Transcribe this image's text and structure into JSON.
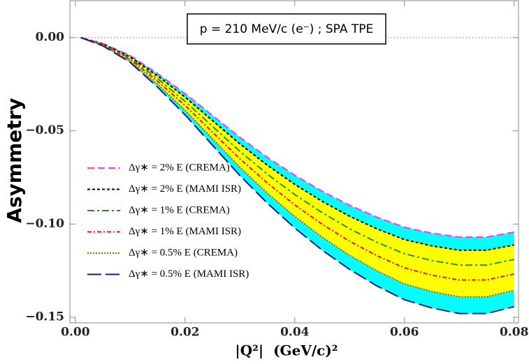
{
  "chart_data": {
    "type": "line",
    "y_label": "Asymmetry",
    "x_label": "|Q²|  (GeV/c)²",
    "annotation": "p = 210 MeV/c (e⁻) ; SPA TPE",
    "x": [
      0.001,
      0.005,
      0.01,
      0.015,
      0.02,
      0.025,
      0.03,
      0.035,
      0.04,
      0.045,
      0.05,
      0.055,
      0.06,
      0.065,
      0.07,
      0.075,
      0.08
    ],
    "series": [
      {
        "name": "Δγ∗ = 2% E (CREMA)",
        "color": "#ff33ff",
        "dash": "10,5",
        "values": [
          0,
          -0.0032,
          -0.0096,
          -0.0193,
          -0.03,
          -0.0417,
          -0.0535,
          -0.0642,
          -0.0738,
          -0.0824,
          -0.0899,
          -0.0963,
          -0.1017,
          -0.1049,
          -0.107,
          -0.107,
          -0.1043
        ]
      },
      {
        "name": "Δγ∗ = 2% E (MAMI ISR)",
        "color": "#000000",
        "dash": "4,3",
        "values": [
          0,
          -0.0034,
          -0.0103,
          -0.0205,
          -0.0319,
          -0.0445,
          -0.057,
          -0.0684,
          -0.0787,
          -0.0878,
          -0.0958,
          -0.1026,
          -0.1083,
          -0.1117,
          -0.114,
          -0.114,
          -0.1112
        ]
      },
      {
        "name": "Δγ∗ = 1% E (CREMA)",
        "color": "#1a9a1a",
        "dash": "10,4,3,4",
        "values": [
          0,
          -0.0037,
          -0.011,
          -0.022,
          -0.0342,
          -0.0476,
          -0.061,
          -0.0732,
          -0.0842,
          -0.0939,
          -0.1025,
          -0.1098,
          -0.1159,
          -0.1196,
          -0.122,
          -0.122,
          -0.119
        ]
      },
      {
        "name": "Δγ∗ = 1% E (MAMI ISR)",
        "color": "#ee1111",
        "dash": "6,3,2,3",
        "values": [
          0,
          -0.0039,
          -0.0117,
          -0.0234,
          -0.0364,
          -0.0507,
          -0.065,
          -0.078,
          -0.0897,
          -0.1001,
          -0.1092,
          -0.117,
          -0.1235,
          -0.1274,
          -0.13,
          -0.13,
          -0.1268
        ]
      },
      {
        "name": "Δγ∗ = 0.5% E (CREMA)",
        "color": "#b8560f",
        "dash": "2,2",
        "values": [
          0,
          -0.0042,
          -0.0125,
          -0.025,
          -0.0389,
          -0.0542,
          -0.0695,
          -0.0834,
          -0.0959,
          -0.107,
          -0.1168,
          -0.1251,
          -0.1321,
          -0.1362,
          -0.139,
          -0.139,
          -0.1355
        ]
      },
      {
        "name": "Δγ∗ = 0.5% E (MAMI ISR)",
        "color": "#1a1a8c",
        "dash": "20,6",
        "values": [
          0,
          -0.0044,
          -0.0133,
          -0.0266,
          -0.0414,
          -0.0577,
          -0.074,
          -0.0888,
          -0.1021,
          -0.114,
          -0.1243,
          -0.1332,
          -0.1406,
          -0.145,
          -0.148,
          -0.148,
          -0.1443
        ]
      }
    ],
    "band_colors": [
      "#00ffff",
      "#ffff00"
    ],
    "zero_line": true,
    "xlim": [
      -0.001,
      0.0808
    ],
    "ylim": [
      -0.153,
      0.0198
    ],
    "xticks": [
      {
        "value": 0,
        "label": "0.00"
      },
      {
        "value": 0.02,
        "label": "0.02"
      },
      {
        "value": 0.04,
        "label": "0.04"
      },
      {
        "value": 0.06,
        "label": "0.06"
      },
      {
        "value": 0.08,
        "label": "0.08"
      }
    ],
    "yticks": [
      {
        "value": 0,
        "label": "0.00"
      },
      {
        "value": -0.05,
        "label": "−0.05"
      },
      {
        "value": -0.1,
        "label": "−0.10"
      },
      {
        "value": -0.15,
        "label": "−0.15"
      }
    ]
  }
}
